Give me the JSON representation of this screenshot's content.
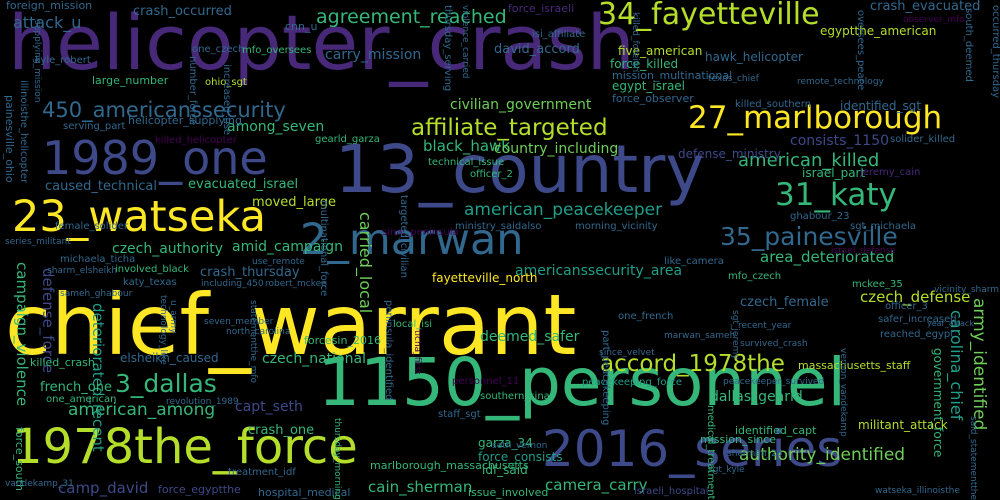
{
  "background": "#000000",
  "palette": {
    "yellow": "#fde725",
    "lightgreen": "#b5de2b",
    "green": "#6ece58",
    "teal": "#35b779",
    "cyan": "#1f9e89",
    "blue": "#26828e",
    "slate": "#31688e",
    "indigo": "#3e4989",
    "purple": "#482878",
    "dark": "#440154"
  },
  "words": [
    {
      "text": "helicopter_crash"
    },
    {
      "text": "chief_warrant"
    },
    {
      "text": "13_country"
    },
    {
      "text": "1150_personnel"
    },
    {
      "text": "1978the_force"
    },
    {
      "text": "2016_series"
    },
    {
      "text": "1989_one"
    },
    {
      "text": "23_watseka"
    },
    {
      "text": "2_marwan"
    },
    {
      "text": "34_fayetteville"
    },
    {
      "text": "27_marlborough"
    },
    {
      "text": "affiliate_targeted"
    },
    {
      "text": "31_katy"
    },
    {
      "text": "35_painesville"
    },
    {
      "text": "450_americanssecurity"
    },
    {
      "text": "3_dallas"
    },
    {
      "text": "accord_1978the"
    },
    {
      "text": "agreement_reached"
    },
    {
      "text": "american_killed"
    },
    {
      "text": "american_peacekeeper"
    },
    {
      "text": "american_among"
    },
    {
      "text": "authority_identified"
    },
    {
      "text": "army_identified"
    },
    {
      "text": "carolina_chief"
    },
    {
      "text": "attack_u"
    },
    {
      "text": "crash_occurred"
    },
    {
      "text": "carry_mission"
    },
    {
      "text": "david_accord"
    },
    {
      "text": "crash_evacuated"
    },
    {
      "text": "black_hawk"
    },
    {
      "text": "among_seven"
    },
    {
      "text": "country_including"
    },
    {
      "text": "civilian_government"
    },
    {
      "text": "consists_1150"
    },
    {
      "text": "caused_technical"
    },
    {
      "text": "evacuated_israel"
    },
    {
      "text": "moved_large"
    },
    {
      "text": "czech_authority"
    },
    {
      "text": "amid_campaign"
    },
    {
      "text": "carried_local"
    },
    {
      "text": "area_deteriorated"
    },
    {
      "text": "czech_defense"
    },
    {
      "text": "czech_female"
    },
    {
      "text": "americanssecurity_area"
    },
    {
      "text": "fayetteville_north"
    },
    {
      "text": "crash_thursday"
    },
    {
      "text": "campaign_violence"
    },
    {
      "text": "defense_force"
    },
    {
      "text": "deteriorated_recent"
    },
    {
      "text": "capt_seth"
    },
    {
      "text": "dallas_gearld"
    },
    {
      "text": "deemed_safer"
    },
    {
      "text": "czech_national"
    },
    {
      "text": "elsheikh_caused"
    },
    {
      "text": "french_one"
    },
    {
      "text": "killed_crash"
    },
    {
      "text": "crash_one"
    },
    {
      "text": "camp_david"
    },
    {
      "text": "cain_sherman"
    },
    {
      "text": "camera_carry"
    },
    {
      "text": "garza_34"
    },
    {
      "text": "force_consists"
    },
    {
      "text": "idf_said"
    },
    {
      "text": "hospital_medical"
    },
    {
      "text": "issue_involved"
    },
    {
      "text": "militant_attack"
    },
    {
      "text": "identified_capt"
    },
    {
      "text": "mission_since"
    },
    {
      "text": "government_force"
    },
    {
      "text": "massachusetts_staff"
    },
    {
      "text": "five_american"
    },
    {
      "text": "force_killed"
    },
    {
      "text": "mission_multinational"
    },
    {
      "text": "egypt_israel"
    },
    {
      "text": "force_observer"
    },
    {
      "text": "hawk_helicopter"
    },
    {
      "text": "egyptthe_american"
    },
    {
      "text": "foreign_mission"
    },
    {
      "text": "force_israeli"
    },
    {
      "text": "cnn_u"
    },
    {
      "text": "isi_affiliate"
    },
    {
      "text": "kyle_robert"
    },
    {
      "text": "one_czech"
    },
    {
      "text": "mfo_oversees"
    },
    {
      "text": "large_number"
    },
    {
      "text": "ohio_sgt"
    },
    {
      "text": "increased_use"
    },
    {
      "text": "number_force"
    },
    {
      "text": "helicopter_supplying"
    },
    {
      "text": "killed_helicopter"
    },
    {
      "text": "serving_part"
    },
    {
      "text": "gearld_garza"
    },
    {
      "text": "technical_issue"
    },
    {
      "text": "officer_2"
    },
    {
      "text": "defense_ministry"
    },
    {
      "text": "killed_southern"
    },
    {
      "text": "identified_sgt"
    },
    {
      "text": "israel_part"
    },
    {
      "text": "jeremy_cain"
    },
    {
      "text": "solider_killed"
    },
    {
      "text": "observer_mfo"
    },
    {
      "text": "remote_technology"
    },
    {
      "text": "texas_chief"
    },
    {
      "text": "painesville_ohio"
    },
    {
      "text": "illinoisthe_helicopter"
    },
    {
      "text": "female_solider"
    },
    {
      "text": "series_militant"
    },
    {
      "text": "michaela_ticha"
    },
    {
      "text": "sharm_elsheikh"
    },
    {
      "text": "sameh_ghabour"
    },
    {
      "text": "katy_texas"
    },
    {
      "text": "including_450"
    },
    {
      "text": "robert_mckee"
    },
    {
      "text": "involved_black"
    },
    {
      "text": "technology_like"
    },
    {
      "text": "u_army"
    },
    {
      "text": "seven_member"
    },
    {
      "text": "north_carolina"
    },
    {
      "text": "forcesin_2016"
    },
    {
      "text": "local_isi"
    },
    {
      "text": "one_french"
    },
    {
      "text": "marwan_sameh"
    },
    {
      "text": "like_camera"
    },
    {
      "text": "mfo_czech"
    },
    {
      "text": "mckee_35"
    },
    {
      "text": "officer_3"
    },
    {
      "text": "safer_increased"
    },
    {
      "text": "reached_egypt"
    },
    {
      "text": "sgt_michaela"
    },
    {
      "text": "ghabour_23"
    },
    {
      "text": "israel_defense"
    },
    {
      "text": "vicinity_sharm"
    },
    {
      "text": "ministry_saidalso"
    },
    {
      "text": "morning_vicinity"
    },
    {
      "text": "sinai_peninsula"
    },
    {
      "text": "peninsula_identified"
    },
    {
      "text": "targeted_civilian"
    },
    {
      "text": "multinational_force"
    },
    {
      "text": "since_velvet"
    },
    {
      "text": "peacekeeping_force"
    },
    {
      "text": "peacekeeper_survived"
    },
    {
      "text": "revolution_1989"
    },
    {
      "text": "personnel_11"
    },
    {
      "text": "southern_sinai"
    },
    {
      "text": "staff_sgt"
    },
    {
      "text": "marlborough_massachusetts"
    },
    {
      "text": "seth_vernon"
    },
    {
      "text": "sgt_kyle"
    },
    {
      "text": "sherman_23"
    },
    {
      "text": "israeli_hospital"
    },
    {
      "text": "treatment_idf"
    },
    {
      "text": "force_egyptthe"
    },
    {
      "text": "one_american"
    },
    {
      "text": "force_south"
    },
    {
      "text": "vandekamp_31"
    },
    {
      "text": "watseka_illinoisthe"
    },
    {
      "text": "recent_year"
    },
    {
      "text": "survived_crash"
    },
    {
      "text": "year_attack"
    },
    {
      "text": "thursday_morning"
    },
    {
      "text": "medical_treatment"
    },
    {
      "text": "part_peacekeeping"
    },
    {
      "text": "thursday_serving"
    },
    {
      "text": "violence_carried"
    },
    {
      "text": "supplying_mission"
    },
    {
      "text": "south_deemed"
    },
    {
      "text": "oversees_peace"
    },
    {
      "text": "occurred_thursday"
    },
    {
      "text": "said_statementthe"
    },
    {
      "text": "ticha_first"
    },
    {
      "text": "statementthe_mfo"
    },
    {
      "text": "use_remote"
    },
    {
      "text": "killed_foreign"
    },
    {
      "text": "vernon_vandekamp"
    },
    {
      "text": "sgt_jeremy"
    }
  ]
}
